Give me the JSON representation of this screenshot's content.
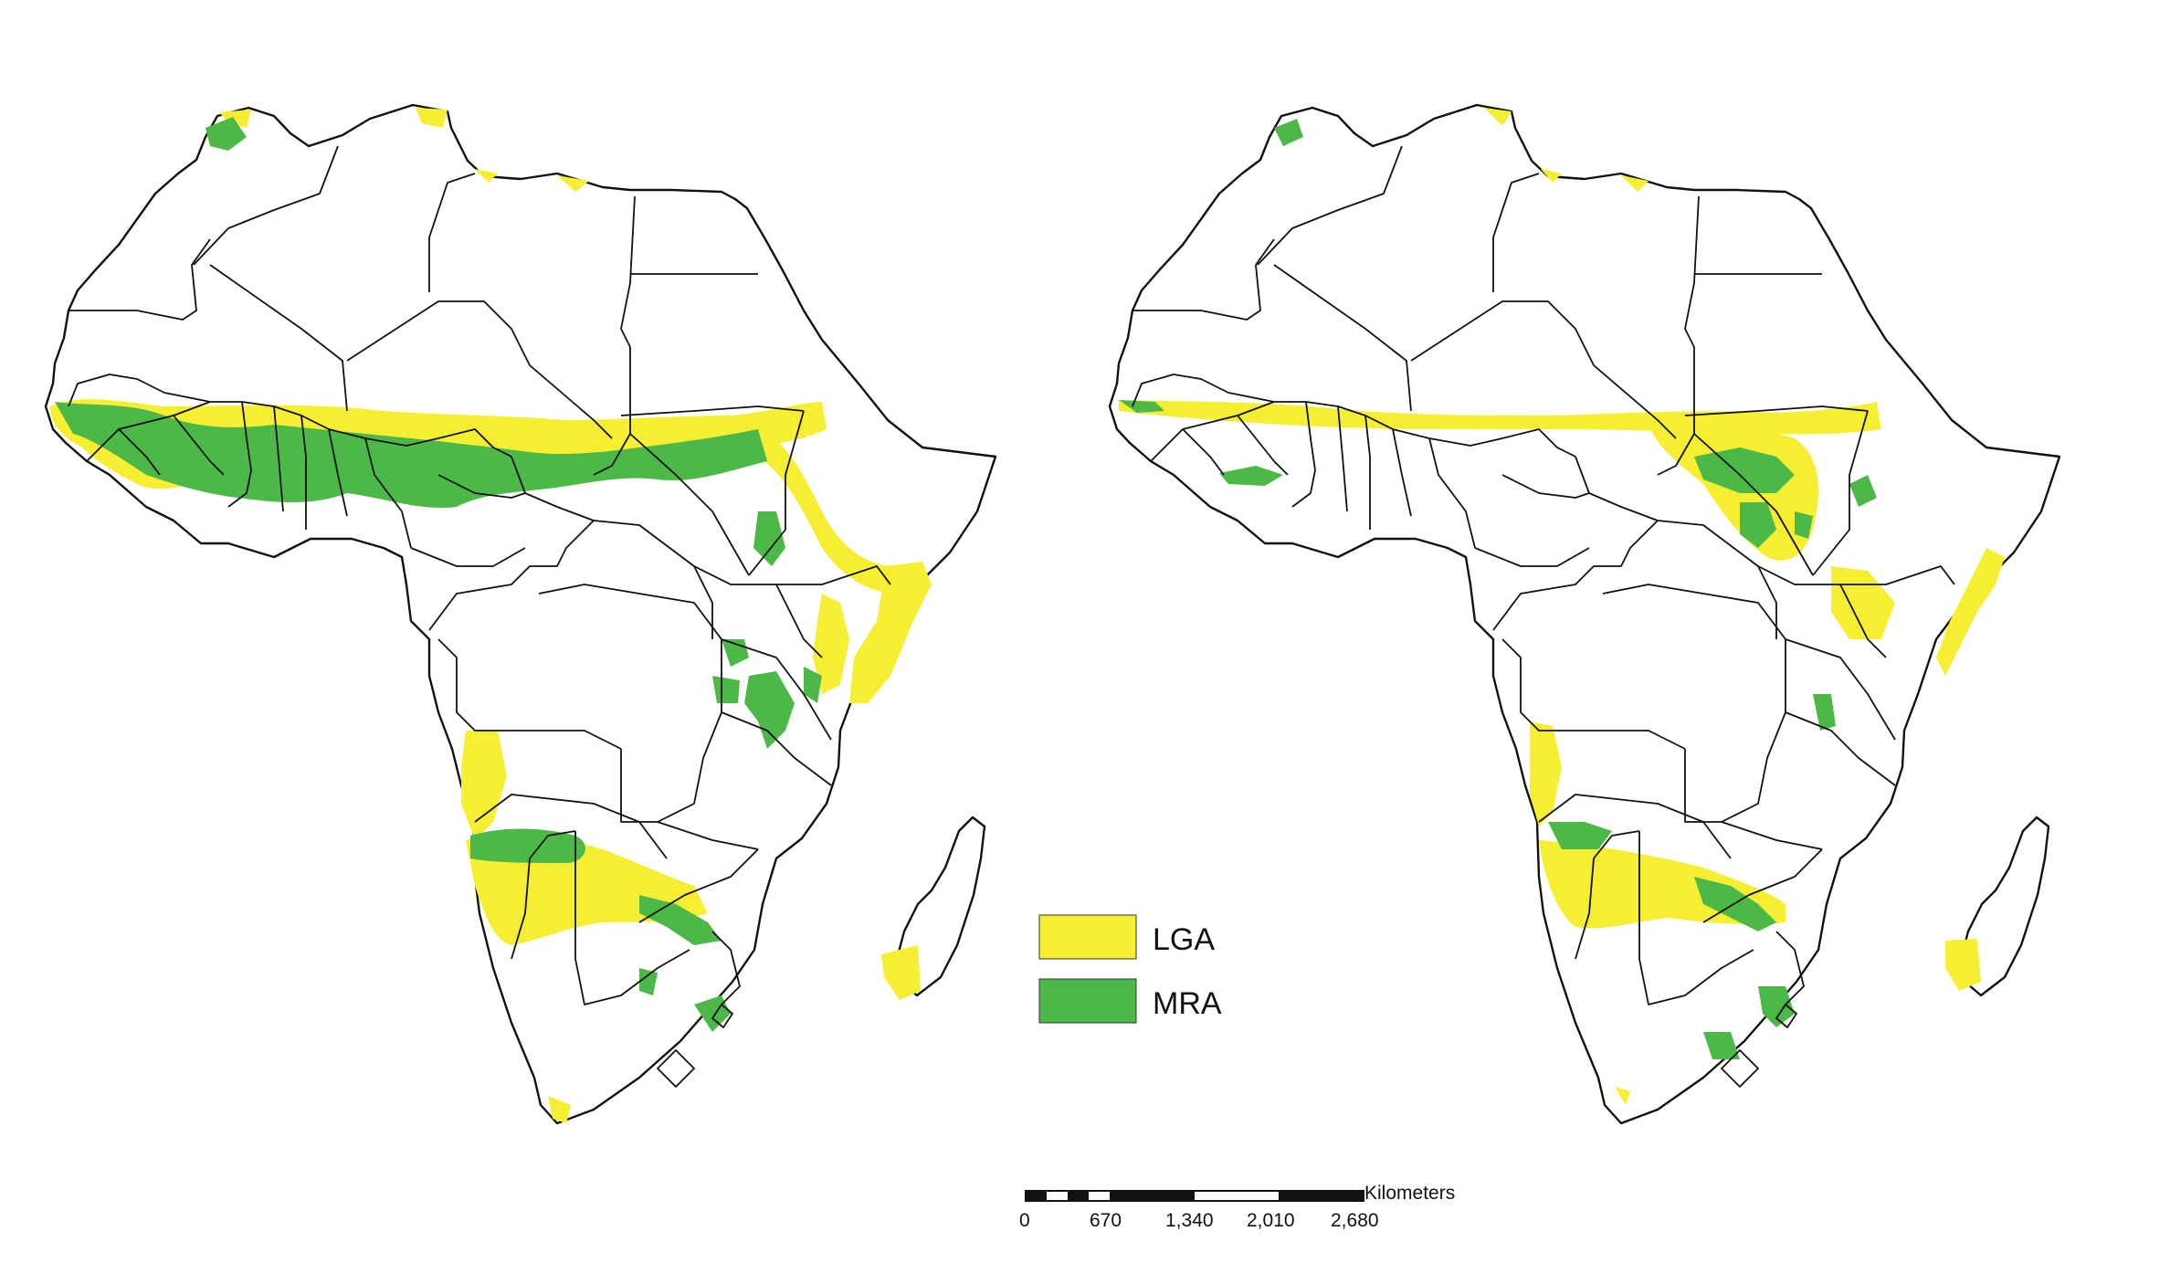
{
  "legend": {
    "items": [
      {
        "label": "LGA",
        "color": "#f6ee33"
      },
      {
        "label": "MRA",
        "color": "#4cb848"
      }
    ]
  },
  "scale_bar": {
    "unit": "Kilometers",
    "ticks": [
      "0",
      "670",
      "1,340",
      "2,010",
      "2,680"
    ]
  },
  "colors": {
    "land": "#ffffff",
    "border": "#111111",
    "lga": "#f6ee33",
    "mra": "#4cb848"
  }
}
